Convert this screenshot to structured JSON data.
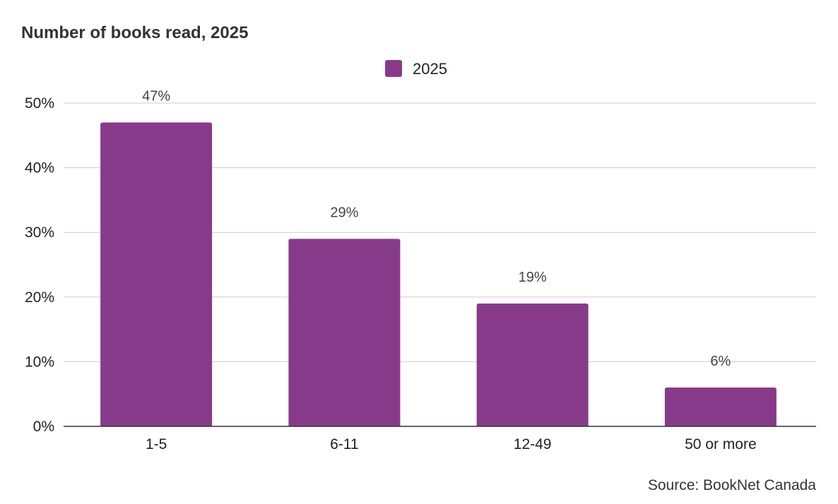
{
  "chart_data": {
    "type": "bar",
    "title": "Number of books read, 2025",
    "categories": [
      "1-5",
      "6-11",
      "12-49",
      "50 or more"
    ],
    "series": [
      {
        "name": "2025",
        "values": [
          47,
          29,
          19,
          6
        ],
        "labels": [
          "47%",
          "29%",
          "19%",
          "6%"
        ],
        "color": "#883a8a"
      }
    ],
    "ylim": [
      0,
      50
    ],
    "yticks": [
      0,
      10,
      20,
      30,
      40,
      50
    ],
    "ytick_labels": [
      "0%",
      "10%",
      "20%",
      "30%",
      "40%",
      "50%"
    ],
    "xlabel": "",
    "ylabel": "",
    "grid": true,
    "legend_position": "top-center",
    "source": "Source: BookNet Canada"
  }
}
